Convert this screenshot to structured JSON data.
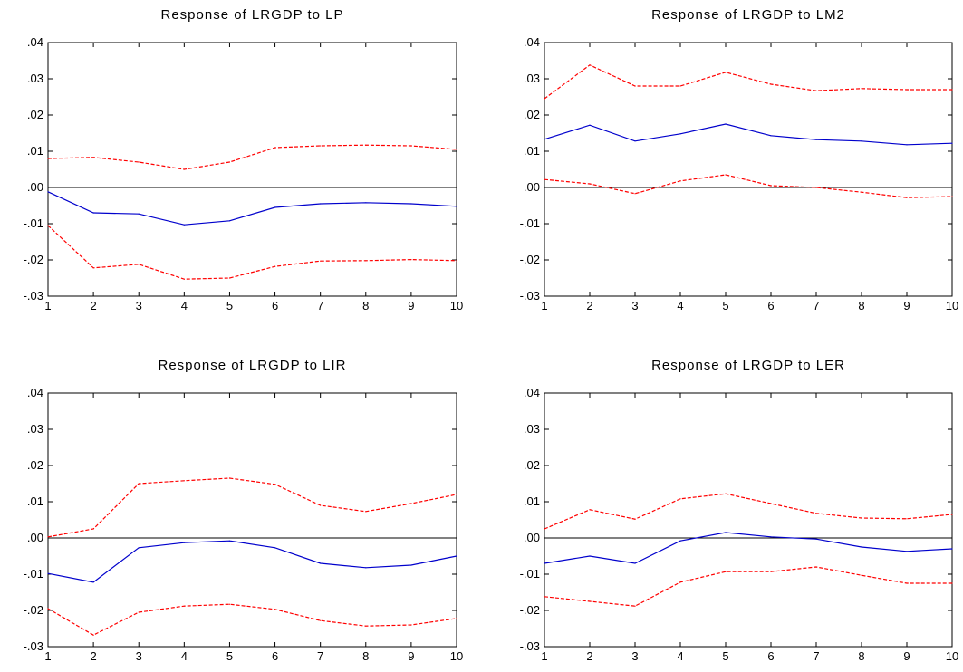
{
  "chart_data": [
    {
      "type": "line",
      "title": "Response of LRGDP to LP",
      "x": [
        1,
        2,
        3,
        4,
        5,
        6,
        7,
        8,
        9,
        10
      ],
      "ylim": [
        -0.03,
        0.04
      ],
      "yticks": [
        ".04",
        ".03",
        ".02",
        ".01",
        ".00",
        "-.01",
        "-.02",
        "-.03"
      ],
      "xticks": [
        "1",
        "2",
        "3",
        "4",
        "5",
        "6",
        "7",
        "8",
        "9",
        "10"
      ],
      "grid": false,
      "series": [
        {
          "style": "upper-band",
          "color": "#ff0000",
          "values": [
            0.008,
            0.0083,
            0.007,
            0.005,
            0.007,
            0.011,
            0.0115,
            0.0117,
            0.0115,
            0.0105
          ]
        },
        {
          "style": "response",
          "color": "#0000cc",
          "values": [
            -0.0012,
            -0.007,
            -0.0073,
            -0.0103,
            -0.0092,
            -0.0055,
            -0.0045,
            -0.0042,
            -0.0045,
            -0.0052
          ]
        },
        {
          "style": "lower-band",
          "color": "#ff0000",
          "values": [
            -0.0105,
            -0.0222,
            -0.0212,
            -0.0253,
            -0.025,
            -0.0218,
            -0.0203,
            -0.0202,
            -0.0199,
            -0.0202
          ]
        }
      ]
    },
    {
      "type": "line",
      "title": "Response of LRGDP to LM2",
      "x": [
        1,
        2,
        3,
        4,
        5,
        6,
        7,
        8,
        9,
        10
      ],
      "ylim": [
        -0.03,
        0.04
      ],
      "yticks": [
        ".04",
        ".03",
        ".02",
        ".01",
        ".00",
        "-.01",
        "-.02",
        "-.03"
      ],
      "xticks": [
        "1",
        "2",
        "3",
        "4",
        "5",
        "6",
        "7",
        "8",
        "9",
        "10"
      ],
      "grid": false,
      "series": [
        {
          "style": "upper-band",
          "color": "#ff0000",
          "values": [
            0.0245,
            0.0338,
            0.028,
            0.028,
            0.0318,
            0.0285,
            0.0267,
            0.0273,
            0.027,
            0.027
          ]
        },
        {
          "style": "response",
          "color": "#0000cc",
          "values": [
            0.0133,
            0.0172,
            0.0128,
            0.0148,
            0.0175,
            0.0143,
            0.0132,
            0.0128,
            0.0118,
            0.0122
          ]
        },
        {
          "style": "lower-band",
          "color": "#ff0000",
          "values": [
            0.0022,
            0.001,
            -0.0017,
            0.0018,
            0.0035,
            0.0005,
            0.0,
            -0.0013,
            -0.0028,
            -0.0025
          ]
        }
      ]
    },
    {
      "type": "line",
      "title": "Response of LRGDP to LIR",
      "x": [
        1,
        2,
        3,
        4,
        5,
        6,
        7,
        8,
        9,
        10
      ],
      "ylim": [
        -0.03,
        0.04
      ],
      "yticks": [
        ".04",
        ".03",
        ".02",
        ".01",
        ".00",
        "-.01",
        "-.02",
        "-.03"
      ],
      "xticks": [
        "1",
        "2",
        "3",
        "4",
        "5",
        "6",
        "7",
        "8",
        "9",
        "10"
      ],
      "grid": false,
      "series": [
        {
          "style": "upper-band",
          "color": "#ff0000",
          "values": [
            0.0003,
            0.0025,
            0.015,
            0.0158,
            0.0165,
            0.0148,
            0.009,
            0.0073,
            0.0095,
            0.012
          ]
        },
        {
          "style": "response",
          "color": "#0000cc",
          "values": [
            -0.0098,
            -0.0122,
            -0.0027,
            -0.0013,
            -0.0008,
            -0.0027,
            -0.007,
            -0.0082,
            -0.0075,
            -0.005
          ]
        },
        {
          "style": "lower-band",
          "color": "#ff0000",
          "values": [
            -0.0195,
            -0.0268,
            -0.0205,
            -0.0188,
            -0.0183,
            -0.0197,
            -0.0228,
            -0.0243,
            -0.024,
            -0.0222
          ]
        }
      ]
    },
    {
      "type": "line",
      "title": "Response of LRGDP to LER",
      "x": [
        1,
        2,
        3,
        4,
        5,
        6,
        7,
        8,
        9,
        10
      ],
      "ylim": [
        -0.03,
        0.04
      ],
      "yticks": [
        ".04",
        ".03",
        ".02",
        ".01",
        ".00",
        "-.01",
        "-.02",
        "-.03"
      ],
      "xticks": [
        "1",
        "2",
        "3",
        "4",
        "5",
        "6",
        "7",
        "8",
        "9",
        "10"
      ],
      "grid": false,
      "series": [
        {
          "style": "upper-band",
          "color": "#ff0000",
          "values": [
            0.0025,
            0.0078,
            0.0052,
            0.0108,
            0.0122,
            0.0095,
            0.0068,
            0.0055,
            0.0053,
            0.0065
          ]
        },
        {
          "style": "response",
          "color": "#0000cc",
          "values": [
            -0.007,
            -0.005,
            -0.007,
            -0.0008,
            0.0015,
            0.0003,
            -0.0003,
            -0.0025,
            -0.0037,
            -0.003
          ]
        },
        {
          "style": "lower-band",
          "color": "#ff0000",
          "values": [
            -0.0162,
            -0.0175,
            -0.0188,
            -0.0122,
            -0.0093,
            -0.0093,
            -0.008,
            -0.0103,
            -0.0125,
            -0.0125
          ]
        }
      ]
    }
  ]
}
